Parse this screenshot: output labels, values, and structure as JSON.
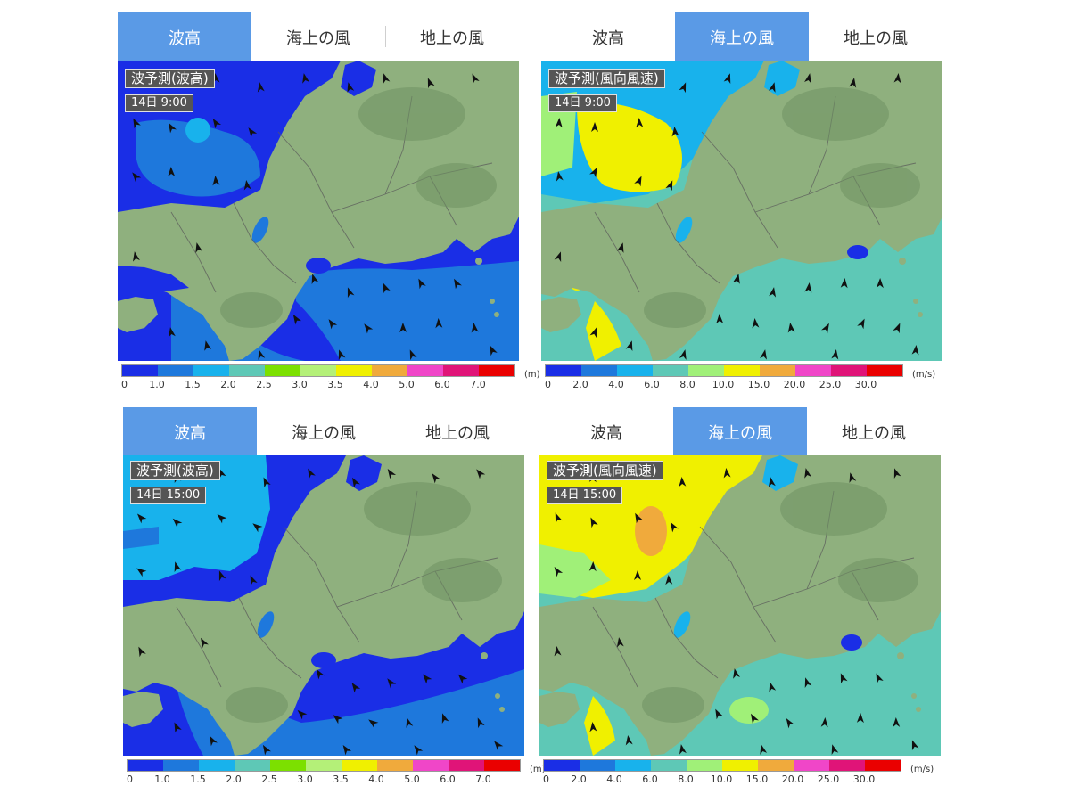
{
  "tabs_labels": [
    "波高",
    "海上の風",
    "地上の風"
  ],
  "panels": [
    {
      "active_tab": 0,
      "title": "波予測(波高)",
      "time": "14日 9:00",
      "legend": "wave"
    },
    {
      "active_tab": 1,
      "title": "波予測(風向風速)",
      "time": "14日 9:00",
      "legend": "wind"
    },
    {
      "active_tab": 0,
      "title": "波予測(波高)",
      "time": "14日 15:00",
      "legend": "wave"
    },
    {
      "active_tab": 1,
      "title": "波予測(風向風速)",
      "time": "14日 15:00",
      "legend": "wind"
    }
  ],
  "legends": {
    "wave": {
      "unit": "(m)",
      "ticks": [
        "0",
        "1.0",
        "1.5",
        "2.0",
        "2.5",
        "3.0",
        "3.5",
        "4.0",
        "5.0",
        "6.0",
        "7.0"
      ],
      "colors": [
        "#1a2ee6",
        "#1e78dc",
        "#18b2ec",
        "#5ec8b6",
        "#7ce000",
        "#b4f078",
        "#f0f000",
        "#f0aa3c",
        "#f046c8",
        "#e01478",
        "#ea0000"
      ]
    },
    "wind": {
      "unit": "(m/s)",
      "ticks": [
        "0",
        "2.0",
        "4.0",
        "6.0",
        "8.0",
        "10.0",
        "15.0",
        "20.0",
        "25.0",
        "30.0"
      ],
      "colors": [
        "#1a2ee6",
        "#1e78dc",
        "#18b2ec",
        "#5ec8b6",
        "#a0f078",
        "#f0f000",
        "#f0aa3c",
        "#f046c8",
        "#e01478",
        "#ea0000"
      ]
    }
  },
  "colors": {
    "land": "#8fb07e",
    "land_dark": "#6f9262",
    "tab_active": "#5a9ae6",
    "boundary": "#5a5a5a"
  }
}
